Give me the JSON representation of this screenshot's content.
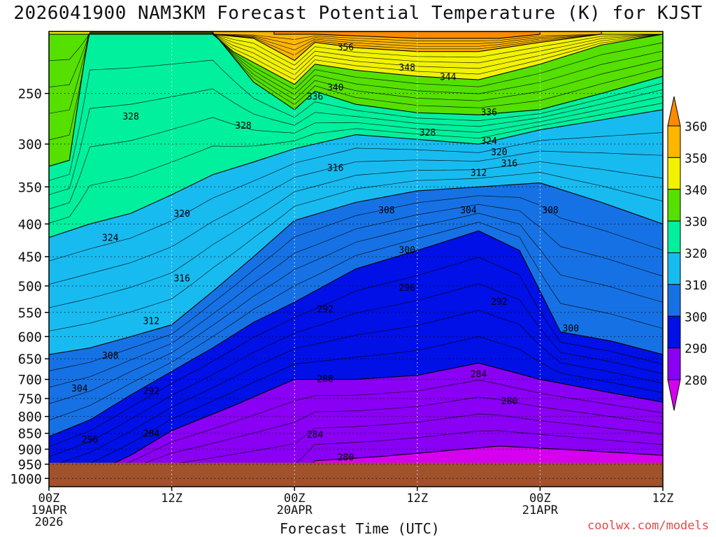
{
  "chart_data": {
    "type": "heatmap",
    "title": "2026041900 NAM3KM Forecast Potential Temperature (K) for KJST",
    "xlabel": "Forecast Time (UTC)",
    "ylabel": "",
    "credit": "coolwx.com/models",
    "x_ticks": [
      {
        "hour": 0,
        "lines": [
          "00Z",
          "19APR",
          "2026"
        ]
      },
      {
        "hour": 12,
        "lines": [
          "12Z"
        ]
      },
      {
        "hour": 24,
        "lines": [
          "00Z",
          "20APR"
        ]
      },
      {
        "hour": 36,
        "lines": [
          "12Z"
        ]
      },
      {
        "hour": 48,
        "lines": [
          "00Z",
          "21APR"
        ]
      },
      {
        "hour": 60,
        "lines": [
          "12Z"
        ]
      }
    ],
    "x_range": [
      0,
      60
    ],
    "y_ticks": [
      250,
      300,
      350,
      400,
      450,
      500,
      550,
      600,
      650,
      700,
      750,
      800,
      850,
      900,
      950,
      1000
    ],
    "y_range_hpa": [
      200,
      1030
    ],
    "surface_pressure_hpa": 945,
    "colorbar": {
      "levels": [
        280,
        290,
        300,
        310,
        320,
        330,
        340,
        350,
        360
      ],
      "colors": [
        "#d600f0",
        "#8a00f4",
        "#0010e6",
        "#1672e4",
        "#18bbf0",
        "#00f09e",
        "#55e000",
        "#f2f200",
        "#ffb600",
        "#ff8a00"
      ]
    },
    "series": [
      {
        "name": "280",
        "values": [
          [
            0,
            1030
          ],
          [
            24,
            1030
          ],
          [
            26,
            938
          ],
          [
            32,
            925
          ],
          [
            44,
            890
          ],
          [
            50,
            900
          ],
          [
            60,
            920
          ],
          [
            60,
            1030
          ]
        ]
      },
      {
        "name": "290",
        "values": [
          [
            0,
            1030
          ],
          [
            0,
            1030
          ],
          [
            4,
            985
          ],
          [
            8,
            920
          ],
          [
            12,
            842
          ],
          [
            18,
            770
          ],
          [
            24,
            700
          ],
          [
            30,
            700
          ],
          [
            36,
            690
          ],
          [
            42,
            660
          ],
          [
            48,
            700
          ],
          [
            54,
            730
          ],
          [
            60,
            760
          ],
          [
            60,
            1030
          ]
        ]
      },
      {
        "name": "300",
        "values": [
          [
            0,
            860
          ],
          [
            4,
            810
          ],
          [
            8,
            740
          ],
          [
            12,
            680
          ],
          [
            16,
            625
          ],
          [
            20,
            570
          ],
          [
            24,
            530
          ],
          [
            30,
            470
          ],
          [
            36,
            440
          ],
          [
            42,
            410
          ],
          [
            46,
            440
          ],
          [
            50,
            590
          ],
          [
            55,
            610
          ],
          [
            60,
            640
          ]
        ]
      },
      {
        "name": "310",
        "values": [
          [
            0,
            640
          ],
          [
            4,
            625
          ],
          [
            8,
            600
          ],
          [
            12,
            575
          ],
          [
            16,
            510
          ],
          [
            20,
            450
          ],
          [
            24,
            395
          ],
          [
            30,
            370
          ],
          [
            36,
            355
          ],
          [
            42,
            350
          ],
          [
            48,
            345
          ],
          [
            54,
            370
          ],
          [
            60,
            400
          ]
        ]
      },
      {
        "name": "320",
        "values": [
          [
            0,
            420
          ],
          [
            4,
            400
          ],
          [
            8,
            385
          ],
          [
            12,
            360
          ],
          [
            16,
            335
          ],
          [
            20,
            320
          ],
          [
            24,
            305
          ],
          [
            30,
            290
          ],
          [
            36,
            295
          ],
          [
            42,
            300
          ],
          [
            48,
            285
          ],
          [
            54,
            275
          ],
          [
            60,
            265
          ]
        ]
      },
      {
        "name": "330",
        "values": [
          [
            0,
            325
          ],
          [
            2,
            318
          ],
          [
            4,
            195
          ],
          [
            12,
            190
          ],
          [
            16,
            200
          ],
          [
            20,
            240
          ],
          [
            24,
            265
          ],
          [
            26,
            248
          ],
          [
            30,
            260
          ],
          [
            36,
            268
          ],
          [
            42,
            270
          ],
          [
            48,
            265
          ],
          [
            54,
            250
          ],
          [
            60,
            235
          ]
        ]
      },
      {
        "name": "340",
        "values": [
          [
            0,
            202
          ],
          [
            16,
            202
          ],
          [
            18,
            215
          ],
          [
            24,
            242
          ],
          [
            26,
            225
          ],
          [
            30,
            230
          ],
          [
            36,
            235
          ],
          [
            42,
            238
          ],
          [
            48,
            225
          ],
          [
            54,
            210
          ],
          [
            60,
            202
          ]
        ]
      },
      {
        "name": "350",
        "values": [
          [
            16,
            202
          ],
          [
            20,
            205
          ],
          [
            24,
            222
          ],
          [
            26,
            208
          ],
          [
            30,
            212
          ],
          [
            36,
            215
          ],
          [
            42,
            215
          ],
          [
            48,
            208
          ],
          [
            54,
            202
          ]
        ]
      },
      {
        "name": "360",
        "values": [
          [
            22,
            202
          ],
          [
            26,
            202
          ],
          [
            36,
            205
          ],
          [
            44,
            205
          ],
          [
            48,
            202
          ]
        ]
      }
    ],
    "contour_labels": [
      {
        "text": "356",
        "hour": 29,
        "hpa": 212
      },
      {
        "text": "348",
        "hour": 35,
        "hpa": 228
      },
      {
        "text": "344",
        "hour": 39,
        "hpa": 236
      },
      {
        "text": "340",
        "hour": 28,
        "hpa": 245
      },
      {
        "text": "336",
        "hour": 26,
        "hpa": 253
      },
      {
        "text": "336",
        "hour": 43,
        "hpa": 268
      },
      {
        "text": "328",
        "hour": 8,
        "hpa": 272
      },
      {
        "text": "328",
        "hour": 19,
        "hpa": 281
      },
      {
        "text": "328",
        "hour": 37,
        "hpa": 288
      },
      {
        "text": "324",
        "hour": 43,
        "hpa": 297
      },
      {
        "text": "320",
        "hour": 44,
        "hpa": 309
      },
      {
        "text": "316",
        "hour": 45,
        "hpa": 322
      },
      {
        "text": "316",
        "hour": 28,
        "hpa": 327
      },
      {
        "text": "312",
        "hour": 42,
        "hpa": 333
      },
      {
        "text": "308",
        "hour": 33,
        "hpa": 381
      },
      {
        "text": "304",
        "hour": 41,
        "hpa": 381
      },
      {
        "text": "308",
        "hour": 49,
        "hpa": 381
      },
      {
        "text": "320",
        "hour": 13,
        "hpa": 386
      },
      {
        "text": "324",
        "hour": 6,
        "hpa": 421
      },
      {
        "text": "300",
        "hour": 35,
        "hpa": 440
      },
      {
        "text": "316",
        "hour": 13,
        "hpa": 487
      },
      {
        "text": "296",
        "hour": 35,
        "hpa": 504
      },
      {
        "text": "292",
        "hour": 27,
        "hpa": 544
      },
      {
        "text": "292",
        "hour": 44,
        "hpa": 530
      },
      {
        "text": "312",
        "hour": 10,
        "hpa": 568
      },
      {
        "text": "300",
        "hour": 51,
        "hpa": 583
      },
      {
        "text": "308",
        "hour": 6,
        "hpa": 643
      },
      {
        "text": "284",
        "hour": 42,
        "hpa": 688
      },
      {
        "text": "288",
        "hour": 27,
        "hpa": 700
      },
      {
        "text": "304",
        "hour": 3,
        "hpa": 724
      },
      {
        "text": "292",
        "hour": 10,
        "hpa": 730
      },
      {
        "text": "280",
        "hour": 45,
        "hpa": 758
      },
      {
        "text": "284",
        "hour": 10,
        "hpa": 852
      },
      {
        "text": "284",
        "hour": 26,
        "hpa": 855
      },
      {
        "text": "296",
        "hour": 4,
        "hpa": 870
      },
      {
        "text": "280",
        "hour": 29,
        "hpa": 928
      }
    ]
  }
}
